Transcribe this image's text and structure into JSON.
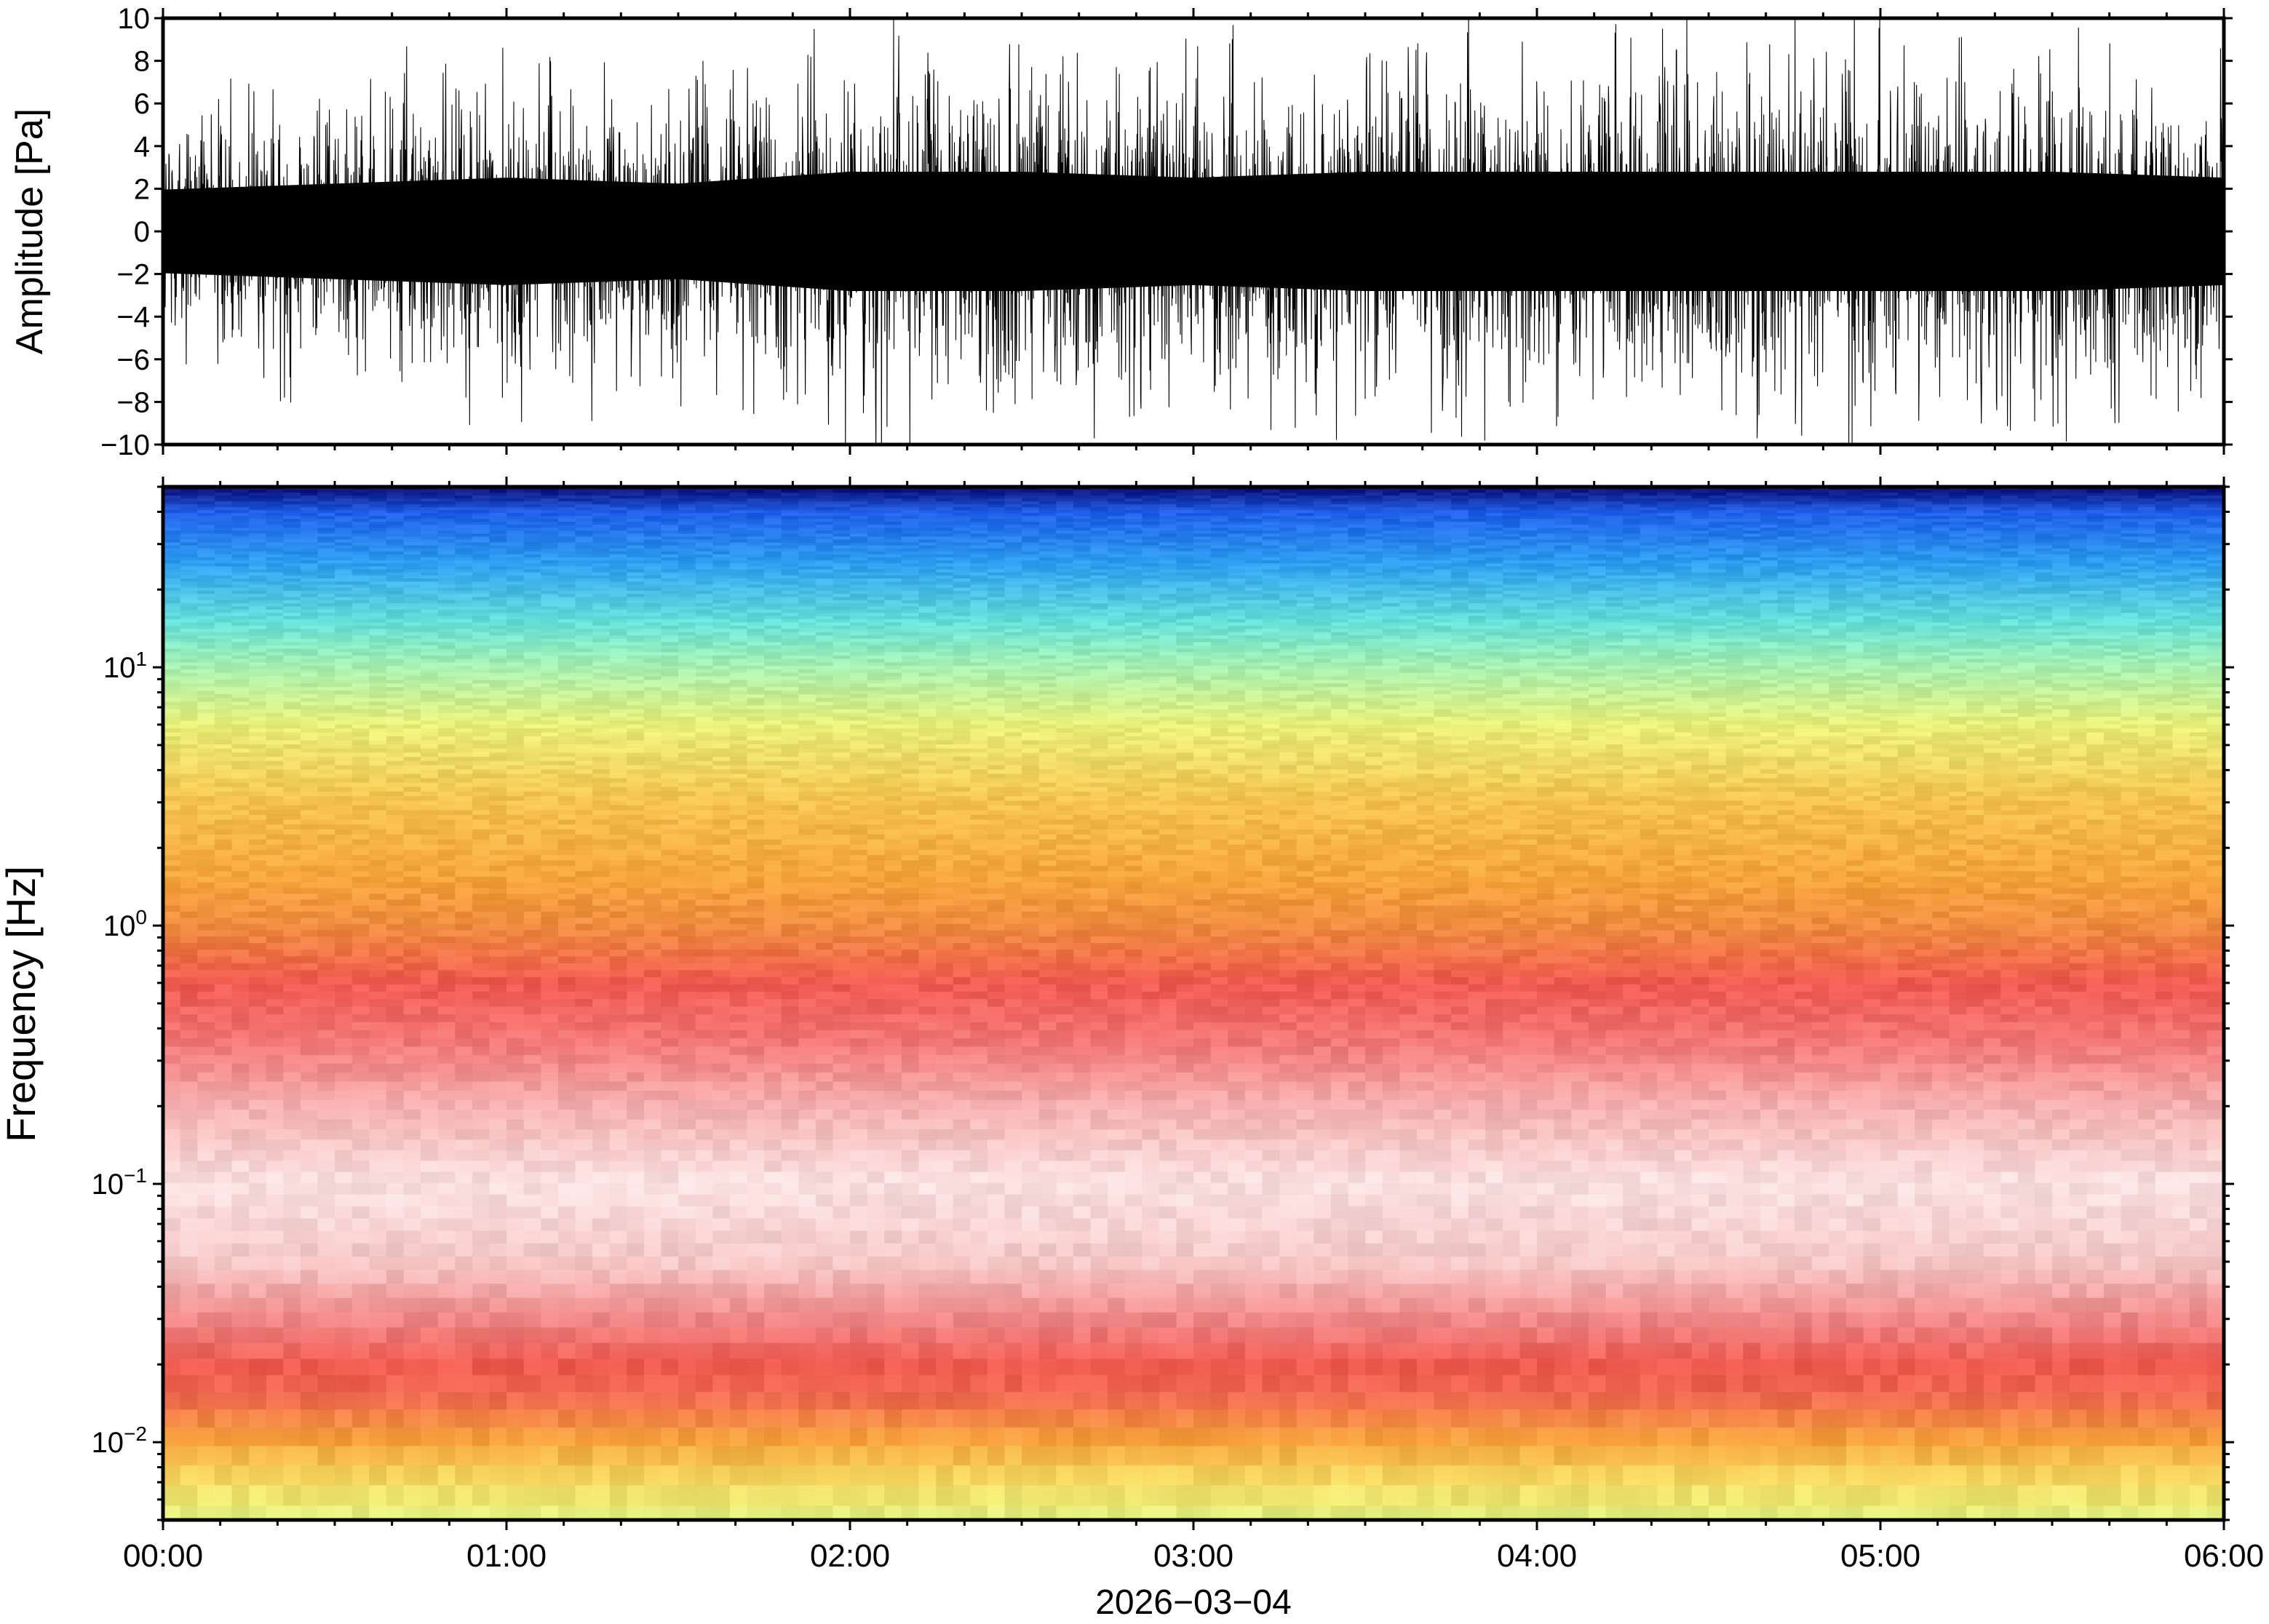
{
  "chart_data": [
    {
      "type": "line",
      "ylabel": "Amplitude [Pa]",
      "ylim": [
        -10,
        10
      ],
      "yticks": [
        {
          "value": 10,
          "label": "10"
        },
        {
          "value": 8,
          "label": "8"
        },
        {
          "value": 6,
          "label": "6"
        },
        {
          "value": 4,
          "label": "4"
        },
        {
          "value": 2,
          "label": "2"
        },
        {
          "value": 0,
          "label": "0"
        },
        {
          "value": -2,
          "label": "−2"
        },
        {
          "value": -4,
          "label": "−4"
        },
        {
          "value": -6,
          "label": "−6"
        },
        {
          "value": -8,
          "label": "−8"
        },
        {
          "value": -10,
          "label": "−10"
        }
      ],
      "xlim": [
        "00:00",
        "06:00"
      ],
      "line_color": "#000000",
      "envelope_by_half_hour": {
        "x": [
          "00:00",
          "00:30",
          "01:00",
          "01:30",
          "02:00",
          "02:30",
          "03:00",
          "03:30",
          "04:00",
          "04:30",
          "05:00",
          "05:30",
          "06:00"
        ],
        "peak_pa": [
          7,
          8,
          9,
          8,
          10,
          10,
          9,
          10,
          10,
          10,
          10,
          10,
          9
        ]
      }
    },
    {
      "type": "heatmap",
      "ylabel": "Frequency [Hz]",
      "xlabel": "2026−03−04",
      "y_scale": "log",
      "ylim_hz": [
        0.005,
        50
      ],
      "yticks": [
        {
          "value": 10,
          "base": "10",
          "exp": "1"
        },
        {
          "value": 1,
          "base": "10",
          "exp": "0"
        },
        {
          "value": 0.1,
          "base": "10",
          "exp": "−1"
        },
        {
          "value": 0.01,
          "base": "10",
          "exp": "−2"
        }
      ],
      "xticks": [
        "00:00",
        "01:00",
        "02:00",
        "03:00",
        "04:00",
        "05:00",
        "06:00"
      ],
      "xlim": [
        "00:00",
        "06:00"
      ],
      "colormap": [
        "#0a0a6e",
        "#1f5ee8",
        "#2fa0f0",
        "#66e0d8",
        "#c8f08c",
        "#f5dc64",
        "#f6a43c",
        "#f05a50",
        "#f6c0c0",
        "#ffffff"
      ],
      "frequency_profile": {
        "freq_hz": [
          50,
          40,
          25,
          15,
          10,
          6,
          3,
          1.5,
          1,
          0.6,
          0.35,
          0.2,
          0.1,
          0.05,
          0.03,
          0.02,
          0.015,
          0.01,
          0.007,
          0.005
        ],
        "color": [
          "#0a0a6e",
          "#1f5ee8",
          "#2fa0f0",
          "#66e0d8",
          "#a8f0b0",
          "#e8f07a",
          "#f6c250",
          "#f6a43c",
          "#f08c40",
          "#f05a50",
          "#f27878",
          "#f6b0b0",
          "#fbe0e0",
          "#f6c8c8",
          "#f08888",
          "#f05a50",
          "#f06a50",
          "#f6a43c",
          "#f5dc64",
          "#e0f080"
        ]
      }
    }
  ]
}
